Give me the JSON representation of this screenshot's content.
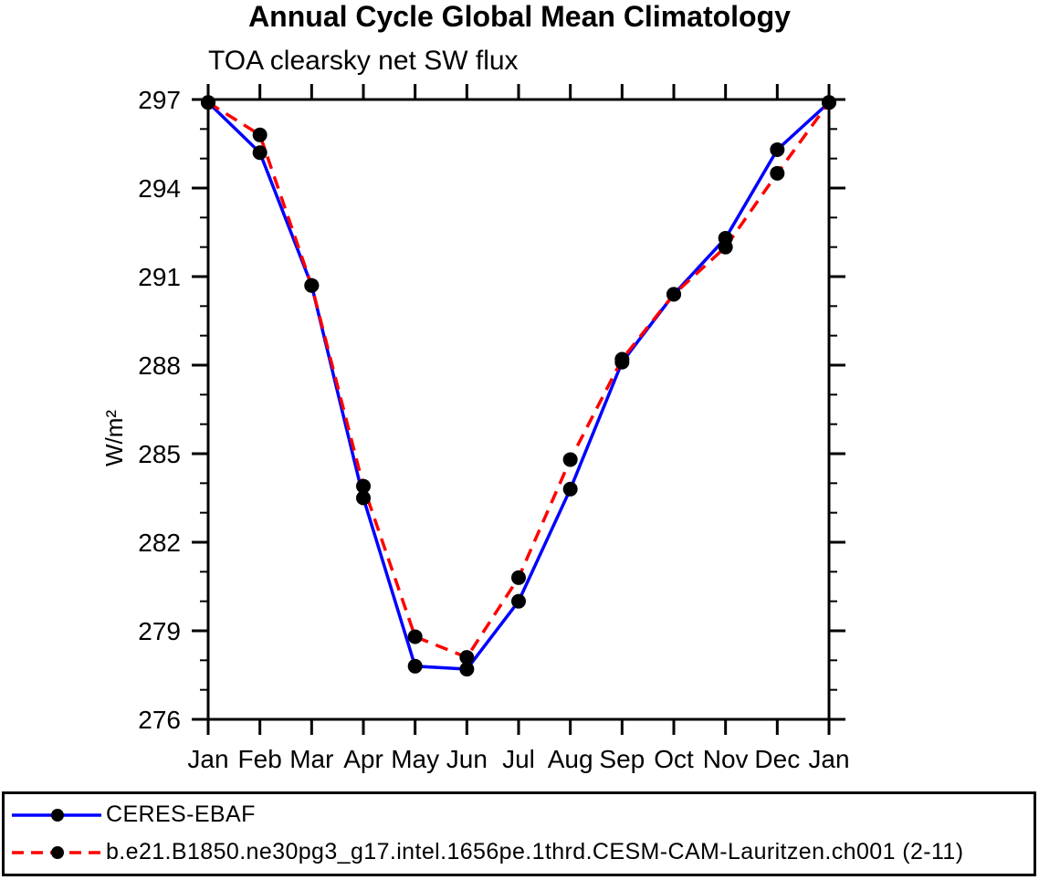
{
  "page": {
    "background": "#ffffff",
    "text_color": "#000000"
  },
  "chart_data": {
    "type": "line",
    "title": "Annual Cycle Global Mean Climatology",
    "subtitle": "TOA clearsky net SW flux",
    "xlabel": "",
    "ylabel": "W/m²",
    "categories": [
      "Jan",
      "Feb",
      "Mar",
      "Apr",
      "May",
      "Jun",
      "Jul",
      "Aug",
      "Sep",
      "Oct",
      "Nov",
      "Dec",
      "Jan"
    ],
    "series": [
      {
        "name": "CERES-EBAF",
        "color": "#0000ff",
        "line_style": "solid",
        "marker": "filled-circle",
        "marker_color": "#000000",
        "values": [
          296.9,
          295.2,
          290.7,
          283.5,
          277.8,
          277.7,
          280.0,
          283.8,
          288.1,
          290.4,
          292.3,
          295.3,
          296.9
        ]
      },
      {
        "name": "b.e21.B1850.ne30pg3_g17.intel.1656pe.1thrd.CESM-CAM-Lauritzen.ch001 (2-11)",
        "color": "#ff0000",
        "line_style": "dashed",
        "marker": "filled-circle",
        "marker_color": "#000000",
        "values": [
          296.9,
          295.8,
          290.7,
          283.9,
          278.8,
          278.1,
          280.8,
          284.8,
          288.2,
          290.4,
          292.0,
          294.5,
          296.9
        ]
      }
    ],
    "ylim": [
      276,
      297
    ],
    "ytick_major": 3,
    "ytick_minor": 1,
    "grid": false,
    "frame_color": "#000000",
    "legend_position": "bottom"
  }
}
